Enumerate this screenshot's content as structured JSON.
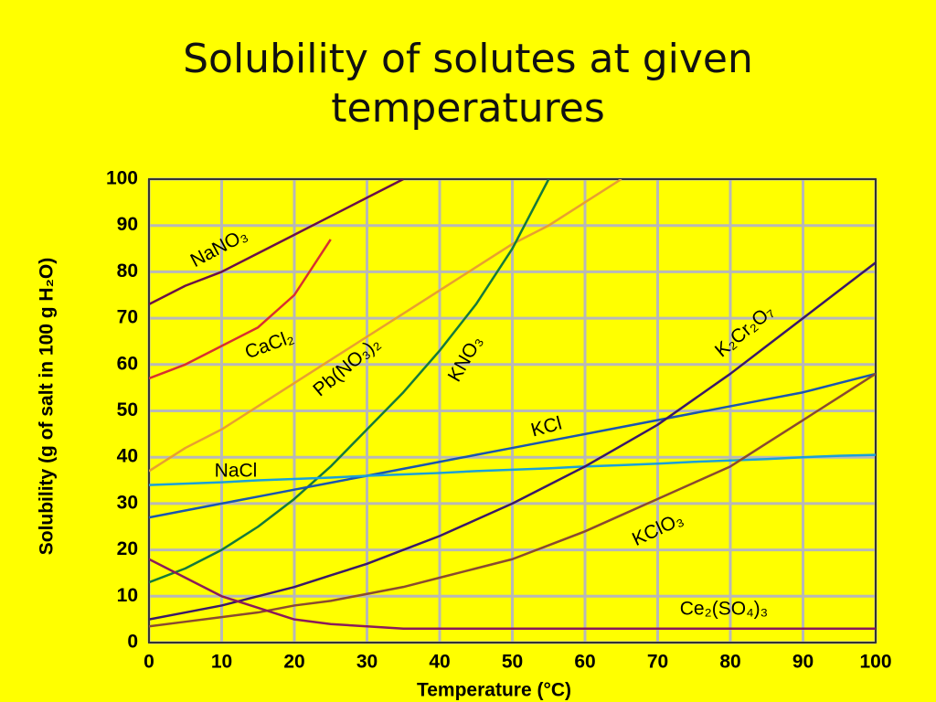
{
  "chart_data": {
    "type": "line",
    "title": "Solubility of solutes at given temperatures",
    "x_label": "Temperature (°C)",
    "y_label": "Solubility (g of salt in 100 g H₂O)",
    "x": [
      0,
      5,
      10,
      15,
      20,
      25,
      30,
      35,
      40,
      45,
      50,
      55,
      60,
      65,
      70,
      75,
      80,
      85,
      90,
      95,
      100
    ],
    "xlim": [
      0,
      100
    ],
    "xticks": [
      0,
      10,
      20,
      30,
      40,
      50,
      60,
      70,
      80,
      90,
      100
    ],
    "ylim": [
      0,
      100
    ],
    "yticks": [
      0,
      10,
      20,
      30,
      40,
      50,
      60,
      70,
      80,
      90,
      100
    ],
    "grid": true,
    "series": [
      {
        "name": "NaNO₃",
        "color": "#6a1048",
        "values": [
          73,
          77,
          80,
          84,
          88,
          92,
          96,
          100,
          null,
          null,
          null,
          null,
          null,
          null,
          null,
          null,
          null,
          null,
          null,
          null,
          null
        ]
      },
      {
        "name": "CaCl₂",
        "color": "#d83030",
        "values": [
          57,
          60,
          64,
          68,
          75,
          87,
          null,
          null,
          null,
          null,
          null,
          null,
          null,
          null,
          null,
          null,
          null,
          null,
          null,
          null,
          null
        ]
      },
      {
        "name": "Pb(NO₃)₂",
        "color": "#e8a030",
        "values": [
          37,
          42,
          46,
          51,
          56,
          61,
          66,
          71,
          76,
          81,
          86,
          90,
          95,
          100,
          null,
          null,
          null,
          null,
          null,
          null,
          null
        ]
      },
      {
        "name": "KNO₃",
        "color": "#157a3a",
        "values": [
          13,
          16,
          20,
          25,
          31,
          38,
          46,
          54,
          63,
          73,
          85,
          100,
          null,
          null,
          null,
          null,
          null,
          null,
          null,
          null,
          null
        ]
      },
      {
        "name": "KCl",
        "color": "#1a55b0",
        "values": [
          27,
          28.5,
          30,
          31.5,
          33,
          34.5,
          36,
          37.5,
          39,
          40.5,
          42,
          43.5,
          45,
          46.5,
          48,
          49.5,
          51,
          52.5,
          54,
          56,
          58
        ]
      },
      {
        "name": "NaCl",
        "color": "#1aa0d8",
        "values": [
          34,
          34.3,
          34.6,
          35,
          35.3,
          35.6,
          36,
          36.3,
          36.6,
          37,
          37.3,
          37.6,
          38,
          38.3,
          38.6,
          39,
          39.3,
          39.6,
          40,
          40.3,
          40.5
        ]
      },
      {
        "name": "K₂Cr₂O₇",
        "color": "#3a1868",
        "values": [
          5,
          6.5,
          8,
          10,
          12,
          14.5,
          17,
          20,
          23,
          26.5,
          30,
          34,
          38,
          42.5,
          47,
          52.5,
          58,
          64,
          70,
          76,
          82
        ]
      },
      {
        "name": "KClO₃",
        "color": "#8a4a30",
        "values": [
          3.5,
          4.5,
          5.5,
          6.5,
          8,
          9,
          10.5,
          12,
          14,
          16,
          18,
          21,
          24,
          27.5,
          31,
          34.5,
          38,
          43,
          48,
          53,
          58
        ]
      },
      {
        "name": "Ce₂(SO₄)₃",
        "color": "#8a1a5a",
        "values": [
          18,
          14,
          10,
          7.5,
          5,
          4,
          3.5,
          3,
          3,
          3,
          3,
          3,
          3,
          3,
          3,
          3,
          3,
          3,
          3,
          3,
          3
        ]
      }
    ]
  }
}
